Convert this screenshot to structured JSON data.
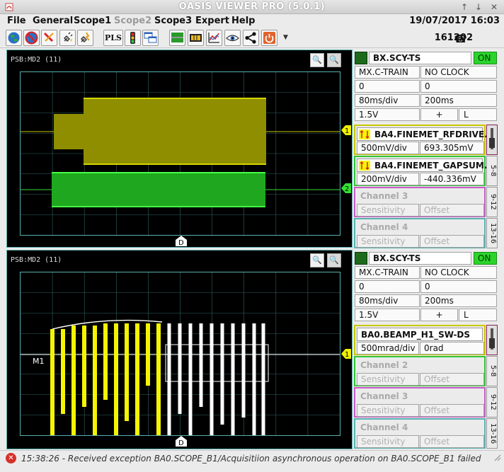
{
  "window": {
    "title": "OASIS VIEWER PRO (5.0.1)"
  },
  "menu": {
    "items": [
      "File",
      "General",
      "Scope1",
      "Scope2",
      "Scope3",
      "Expert",
      "Help"
    ],
    "disabled_index": 3
  },
  "header": {
    "datetime": "19/07/2017 16:03",
    "phone": "161202"
  },
  "toolbar": {
    "pls_label": "PLS"
  },
  "scopes": [
    {
      "label": "PSB:MD2 (11)",
      "source": "BX.SCY-TS",
      "state": "ON",
      "trigger": "MX.C-TRAIN",
      "clock": "NO CLOCK",
      "delay1": "0",
      "delay2": "0",
      "timebase": "80ms/div",
      "window": "200ms",
      "level": "1.5V",
      "slope": "+",
      "coupling": "L",
      "d_marker": "D",
      "channels": [
        {
          "name": "BA4.FINEMET_RFDRIVE...",
          "sensitivity": "500mV/div",
          "offset": "693.305mV",
          "marker": "1",
          "color": "#c8c800"
        },
        {
          "name": "BA4.FINEMET_GAPSUM...",
          "sensitivity": "200mV/div",
          "offset": "-440.336mV",
          "marker": "2",
          "color": "#33e133"
        },
        {
          "name": "Channel 3",
          "sensitivity": "Sensitivity",
          "offset": "Offset"
        },
        {
          "name": "Channel 4",
          "sensitivity": "Sensitivity",
          "offset": "Offset"
        }
      ],
      "tabs": [
        "5-8",
        "9-12",
        "13-16"
      ]
    },
    {
      "label": "PSB:MD2 (11)",
      "source": "BX.SCY-TS",
      "state": "ON",
      "trigger": "MX.C-TRAIN",
      "clock": "NO CLOCK",
      "delay1": "0",
      "delay2": "0",
      "timebase": "80ms/div",
      "window": "200ms",
      "level": "1.5V",
      "slope": "+",
      "coupling": "L",
      "d_marker": "D",
      "m1_label": "M1",
      "channels": [
        {
          "name": "BA0.BEAMP_H1_SW-DS",
          "sensitivity": "500mrad/div",
          "offset": "0rad",
          "marker": "1",
          "color": "#f5f500"
        },
        {
          "name": "Channel 2",
          "sensitivity": "Sensitivity",
          "offset": "Offset"
        },
        {
          "name": "Channel 3",
          "sensitivity": "Sensitivity",
          "offset": "Offset"
        },
        {
          "name": "Channel 4",
          "sensitivity": "Sensitivity",
          "offset": "Offset"
        }
      ],
      "tabs": [
        "5-8",
        "9-12",
        "13-16"
      ]
    }
  ],
  "status": {
    "message": "15:38:26 - Received exception BA0.SCOPE_B1/Acquisitiion asynchronous operation on BA0.SCOPE_B1 failed"
  },
  "colors": {
    "accent": "#2f3dcd",
    "grid": "#5ab1b1",
    "on_green": "#2ad42a"
  }
}
